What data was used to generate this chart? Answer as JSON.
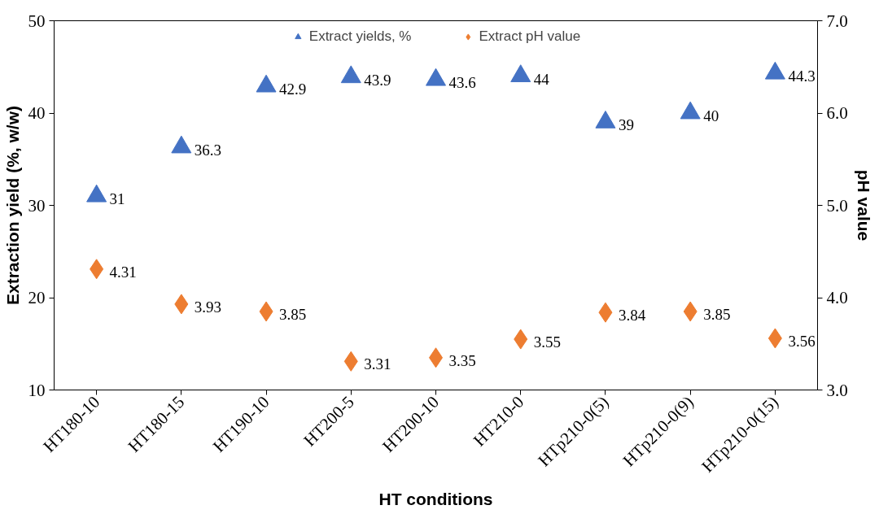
{
  "chart_data": {
    "type": "scatter",
    "xlabel": "HT conditions",
    "ylabel": "Extraction yield (%, w/w)",
    "y2label": "pH value",
    "categories": [
      "HT180-10",
      "HT180-15",
      "HT190-10",
      "HT200-5",
      "HT200-10",
      "HT210-0",
      "HTp210-0(5)",
      "HTp210-0(9)",
      "HTp210-0(15)"
    ],
    "series": [
      {
        "name": "Extract yields, %",
        "color": "#4472c4",
        "marker": "triangle",
        "values": [
          31,
          36.3,
          42.9,
          43.9,
          43.6,
          44,
          39,
          40,
          44.3
        ]
      },
      {
        "name": "Extract pH value",
        "color": "#ed7d31",
        "marker": "diamond",
        "axis": "y2",
        "values": [
          4.31,
          3.93,
          3.85,
          3.31,
          3.35,
          3.55,
          3.84,
          3.85,
          3.56
        ]
      }
    ],
    "ylim": [
      10,
      50
    ],
    "yticks": [
      10,
      20,
      30,
      40,
      50
    ],
    "y2lim": [
      3.0,
      7.0
    ],
    "y2ticks": [
      {
        "value": 3,
        "label": "3.0"
      },
      {
        "value": 4,
        "label": "4.0"
      },
      {
        "value": 5,
        "label": "5.0"
      },
      {
        "value": 6,
        "label": "6.0"
      },
      {
        "value": 7,
        "label": "7.0"
      }
    ],
    "data_labels": true,
    "legend": "top",
    "grid": false
  }
}
